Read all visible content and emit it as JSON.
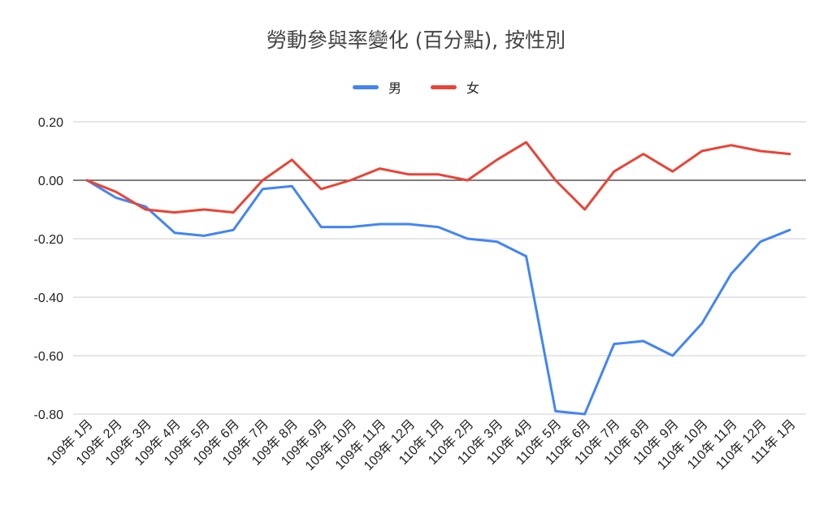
{
  "chart_data": {
    "type": "line",
    "title": "勞動參與率變化 (百分點), 按性別",
    "xlabel": "",
    "ylabel": "",
    "ylim": [
      -0.8,
      0.2
    ],
    "yticks": [
      "0.20",
      "0.00",
      "-0.20",
      "-0.40",
      "-0.60",
      "-0.80"
    ],
    "grid": true,
    "legend_position": "top",
    "categories": [
      "109年 1月",
      "109年 2月",
      "109年 3月",
      "109年 4月",
      "109年 5月",
      "109年 6月",
      "109年 7月",
      "109年 8月",
      "109年 9月",
      "109年 10月",
      "109年 11月",
      "109年 12月",
      "110年 1月",
      "110年 2月",
      "110年 3月",
      "110年 4月",
      "110年 5月",
      "110年 6月",
      "110年 7月",
      "110年 8月",
      "110年 9月",
      "110年 10月",
      "110年 11月",
      "110年 12月",
      "111年 1月"
    ],
    "series": [
      {
        "name": "男",
        "color": "#4285f4",
        "values": [
          0,
          -0.06,
          -0.09,
          -0.18,
          -0.19,
          -0.17,
          -0.03,
          -0.02,
          -0.16,
          -0.16,
          -0.15,
          -0.15,
          -0.16,
          -0.2,
          -0.21,
          -0.26,
          -0.79,
          -0.8,
          -0.56,
          -0.55,
          -0.6,
          -0.49,
          -0.32,
          -0.21,
          -0.17
        ]
      },
      {
        "name": "女",
        "color": "#ea4335",
        "values": [
          0,
          -0.04,
          -0.1,
          -0.11,
          -0.1,
          -0.11,
          0.0,
          0.07,
          -0.03,
          0.0,
          0.04,
          0.02,
          0.02,
          0.0,
          0.07,
          0.13,
          0.0,
          -0.1,
          0.03,
          0.09,
          0.03,
          0.1,
          0.12,
          0.1,
          0.09
        ]
      }
    ]
  }
}
